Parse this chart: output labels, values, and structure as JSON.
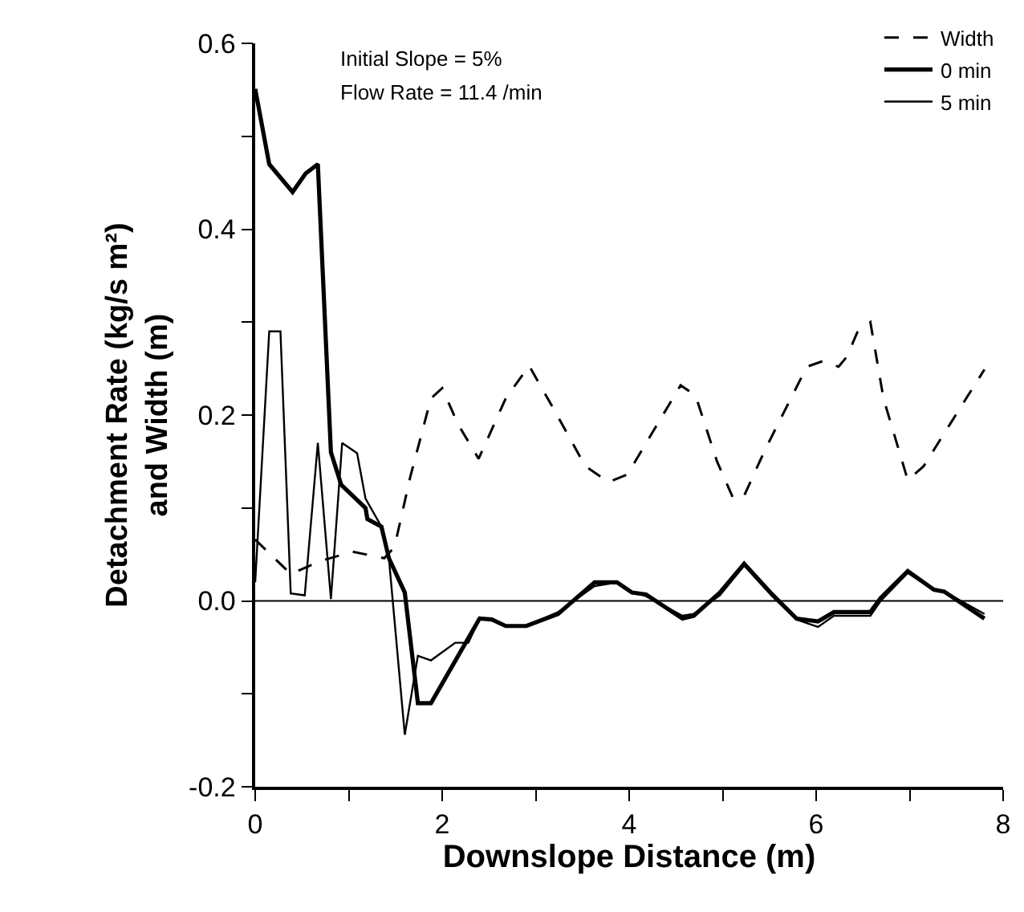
{
  "chart_data": {
    "type": "line",
    "xlabel": "Downslope Distance (m)",
    "ylabel": "Detachment Rate (kg/s m²)\nand Width (m)",
    "annotations": [
      "Initial Slope = 5%",
      "Flow Rate = 11.4 /min"
    ],
    "xlim": [
      0,
      8
    ],
    "ylim": [
      -0.2,
      0.6
    ],
    "xticks": [
      0,
      {
        "value": 1,
        "label": null
      },
      2,
      {
        "value": 3,
        "label": null
      },
      4,
      {
        "value": 5,
        "label": null
      },
      6,
      {
        "value": 7,
        "label": null
      },
      8
    ],
    "yticks": [
      {
        "value": -0.2,
        "label": "-0.2"
      },
      {
        "value": -0.1,
        "label": null
      },
      {
        "value": 0,
        "label": "0.0"
      },
      {
        "value": 0.1,
        "label": null
      },
      {
        "value": 0.2,
        "label": "0.2"
      },
      {
        "value": 0.3,
        "label": null
      },
      {
        "value": 0.4,
        "label": "0.4"
      },
      {
        "value": 0.5,
        "label": null
      },
      {
        "value": 0.6,
        "label": "0.6"
      }
    ],
    "legend": "top right",
    "marker": "none",
    "ref_lines": [
      {
        "axis": "y",
        "value": 0,
        "label": null,
        "color": "#000000"
      }
    ],
    "series": [
      {
        "name": "Width",
        "color": "#000000",
        "line_style": "dashed",
        "x": [
          0,
          0.38,
          0.7,
          1.04,
          1.38,
          1.49,
          1.66,
          1.88,
          2.0,
          2.17,
          2.39,
          2.68,
          2.93,
          3.19,
          3.53,
          3.78,
          3.98,
          4.2,
          4.55,
          4.71,
          4.94,
          5.11,
          5.22,
          5.45,
          5.9,
          6.07,
          6.24,
          6.33,
          6.44,
          6.58,
          6.72,
          6.98,
          7.15,
          7.43,
          7.8
        ],
        "values": [
          0.066,
          0.029,
          0.043,
          0.053,
          0.046,
          0.058,
          0.134,
          0.218,
          0.229,
          0.19,
          0.153,
          0.218,
          0.253,
          0.207,
          0.145,
          0.128,
          0.136,
          0.173,
          0.232,
          0.221,
          0.15,
          0.111,
          0.111,
          0.162,
          0.252,
          0.258,
          0.252,
          0.263,
          0.289,
          0.3,
          0.218,
          0.13,
          0.145,
          0.19,
          0.249
        ]
      },
      {
        "name": "0 min",
        "color": "#000000",
        "line_style": "solid",
        "x": [
          0,
          0.15,
          0.4,
          0.54,
          0.67,
          0.81,
          0.92,
          1.18,
          1.2,
          1.35,
          1.43,
          1.6,
          1.74,
          1.88,
          2.4,
          2.53,
          2.68,
          2.9,
          3.24,
          3.63,
          3.87,
          4.03,
          4.18,
          4.57,
          4.69,
          4.97,
          5.23,
          5.53,
          5.79,
          6.02,
          6.19,
          6.58,
          6.69,
          6.98,
          7.26,
          7.37,
          7.8
        ],
        "values": [
          0.551,
          0.47,
          0.44,
          0.46,
          0.47,
          0.16,
          0.125,
          0.1,
          0.088,
          0.08,
          0.046,
          0.009,
          -0.11,
          -0.11,
          -0.019,
          -0.02,
          -0.027,
          -0.027,
          -0.014,
          0.02,
          0.02,
          0.009,
          0.007,
          -0.019,
          -0.016,
          0.009,
          0.04,
          0.007,
          -0.019,
          -0.022,
          -0.012,
          -0.012,
          0.003,
          0.032,
          0.012,
          0.01,
          -0.019
        ]
      },
      {
        "name": "5 min",
        "color": "#000000",
        "line_style": "solid",
        "x": [
          0,
          0.15,
          0.27,
          0.38,
          0.53,
          0.67,
          0.81,
          0.93,
          1.09,
          1.18,
          1.35,
          1.43,
          1.6,
          1.74,
          1.88,
          2.14,
          2.28,
          2.4,
          2.53,
          2.68,
          2.9,
          3.24,
          3.63,
          3.87,
          4.03,
          4.18,
          4.57,
          4.69,
          4.97,
          5.23,
          5.53,
          5.79,
          6.02,
          6.19,
          6.58,
          6.69,
          6.98,
          7.26,
          7.37,
          7.8
        ],
        "values": [
          0.02,
          0.29,
          0.29,
          0.008,
          0.006,
          0.17,
          0.002,
          0.17,
          0.159,
          0.11,
          0.08,
          0.046,
          -0.144,
          -0.059,
          -0.064,
          -0.045,
          -0.045,
          -0.019,
          -0.02,
          -0.027,
          -0.027,
          -0.012,
          0.016,
          0.02,
          0.01,
          0.005,
          -0.016,
          -0.014,
          0.006,
          0.038,
          0.005,
          -0.02,
          -0.028,
          -0.016,
          -0.016,
          0.0,
          0.03,
          0.012,
          0.01,
          -0.014
        ]
      }
    ]
  }
}
